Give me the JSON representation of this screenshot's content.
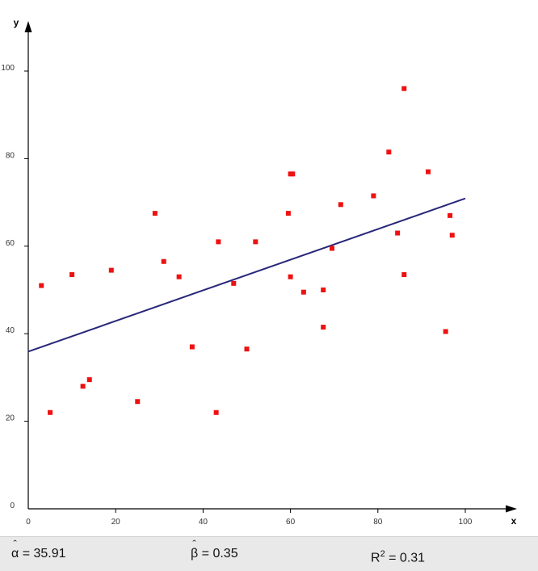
{
  "chart_data": {
    "type": "scatter",
    "title": "",
    "xlabel": "x",
    "ylabel": "y",
    "xlim": [
      0,
      100
    ],
    "ylim": [
      0,
      100
    ],
    "x_ticks": [
      0,
      20,
      40,
      60,
      80,
      100
    ],
    "y_ticks": [
      0,
      20,
      40,
      60,
      80,
      100
    ],
    "grid": false,
    "legend": "none",
    "point_color": "#ee1111",
    "line_color": "#27277a",
    "points": [
      {
        "x": 3,
        "y": 51
      },
      {
        "x": 5,
        "y": 22
      },
      {
        "x": 10,
        "y": 53.5
      },
      {
        "x": 12.5,
        "y": 28
      },
      {
        "x": 14,
        "y": 29.5
      },
      {
        "x": 19,
        "y": 54.5
      },
      {
        "x": 25,
        "y": 24.5
      },
      {
        "x": 29,
        "y": 67.5
      },
      {
        "x": 31,
        "y": 56.5
      },
      {
        "x": 34.5,
        "y": 53
      },
      {
        "x": 37.5,
        "y": 37
      },
      {
        "x": 43,
        "y": 22
      },
      {
        "x": 43.5,
        "y": 61
      },
      {
        "x": 47,
        "y": 51.5
      },
      {
        "x": 50,
        "y": 36.5
      },
      {
        "x": 52,
        "y": 61
      },
      {
        "x": 59.5,
        "y": 67.5
      },
      {
        "x": 60,
        "y": 76.5
      },
      {
        "x": 60.5,
        "y": 76.5
      },
      {
        "x": 60,
        "y": 53
      },
      {
        "x": 63,
        "y": 49.5
      },
      {
        "x": 67.5,
        "y": 50
      },
      {
        "x": 67.5,
        "y": 41.5
      },
      {
        "x": 69.5,
        "y": 59.5
      },
      {
        "x": 71.5,
        "y": 69.5
      },
      {
        "x": 79,
        "y": 71.5
      },
      {
        "x": 82.5,
        "y": 81.5
      },
      {
        "x": 84.5,
        "y": 63
      },
      {
        "x": 86,
        "y": 96
      },
      {
        "x": 86,
        "y": 53.5
      },
      {
        "x": 91.5,
        "y": 77
      },
      {
        "x": 95.5,
        "y": 40.5
      },
      {
        "x": 96.5,
        "y": 67
      },
      {
        "x": 97,
        "y": 62.5
      }
    ],
    "regression": {
      "intercept": 35.91,
      "slope": 0.35
    }
  },
  "stats": {
    "alpha_symbol": "α",
    "alpha_value": "= 35.91",
    "beta_symbol": "β",
    "beta_value": "= 0.35",
    "r2_symbol": "R",
    "r2_sup": "2",
    "r2_value": "= 0.31"
  }
}
